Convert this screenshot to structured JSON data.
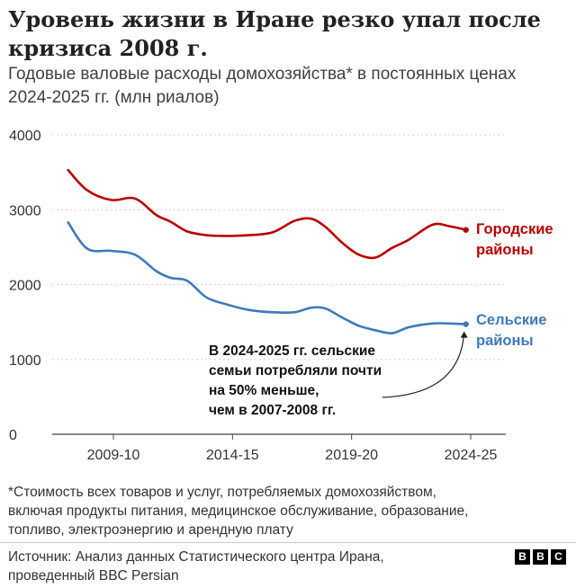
{
  "header": {
    "title": "Уровень жизни в Иране резко упал после кризиса 2008 г.",
    "subtitle": "Годовые валовые расходы домохозяйства* в постоянных ценах 2024-2025 гг. (млн риалов)"
  },
  "chart_data": {
    "type": "line",
    "x": [
      2007.6,
      2008.4,
      2009.4,
      2010.4,
      2011.3,
      2011.9,
      2012.6,
      2013.4,
      2014.2,
      2015.2,
      2016.2,
      2017.1,
      2017.8,
      2018.4,
      2019.1,
      2019.8,
      2020.5,
      2021.2,
      2021.9,
      2022.9,
      2023.6,
      2024.3
    ],
    "x_ticks": [
      {
        "label": "2009-10",
        "x": 2009.5
      },
      {
        "label": "2014-15",
        "x": 2014.5
      },
      {
        "label": "2019-20",
        "x": 2019.5
      },
      {
        "label": "2024-25",
        "x": 2024.5
      }
    ],
    "y_ticks": [
      0,
      1000,
      2000,
      3000,
      4000
    ],
    "ylim": [
      0,
      4000
    ],
    "series": [
      {
        "name": "Городские районы",
        "color": "#b80000",
        "values": [
          3530,
          3260,
          3130,
          3150,
          2930,
          2840,
          2710,
          2660,
          2650,
          2660,
          2700,
          2850,
          2880,
          2770,
          2560,
          2400,
          2360,
          2490,
          2600,
          2800,
          2780,
          2730
        ]
      },
      {
        "name": "Сельские районы",
        "color": "#3d7ab8",
        "values": [
          2830,
          2480,
          2450,
          2400,
          2180,
          2090,
          2050,
          1830,
          1740,
          1660,
          1630,
          1630,
          1690,
          1680,
          1560,
          1450,
          1390,
          1350,
          1430,
          1480,
          1480,
          1470
        ]
      }
    ],
    "annotation": [
      "В 2024-2025 гг. сельские",
      "семьи потребляли почти",
      "на 50% меньше,",
      "чем в 2007-2008 гг."
    ]
  },
  "footnote": [
    "*Стоимость всех товаров и услуг, потребляемых домохозяйством,",
    "включая продукты питания, медицинское обслуживание, образование,",
    "топливо, электроэнергию и арендную плату"
  ],
  "source": [
    "Источник: Анализ данных Статистического центра Ирана,",
    "проведенный BBC Persian"
  ],
  "logo": {
    "letters": [
      "B",
      "B",
      "C"
    ]
  }
}
